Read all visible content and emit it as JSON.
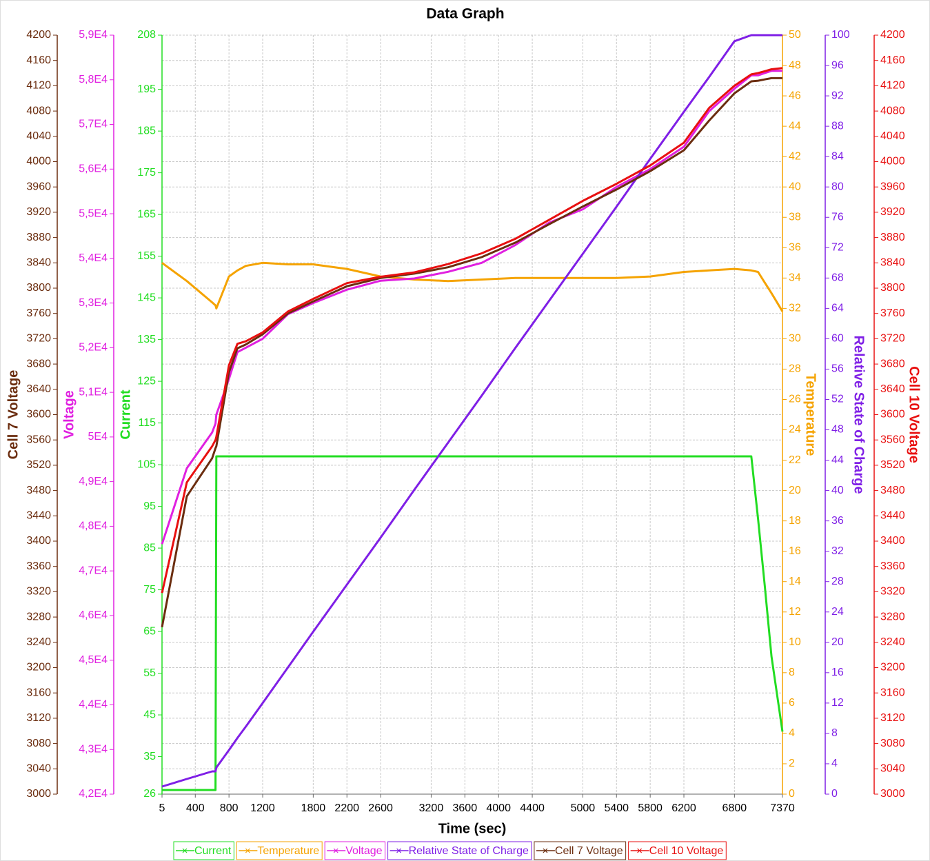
{
  "chart_data": {
    "type": "line",
    "title": "Data Graph",
    "x_label": "Time (sec)",
    "xlim": [
      5,
      7370
    ],
    "xticks": [
      5,
      400,
      800,
      1200,
      1800,
      2200,
      2600,
      3200,
      3600,
      4000,
      4400,
      5000,
      5400,
      5800,
      6200,
      6800,
      7370
    ],
    "grid": true,
    "legend": "bottom",
    "axes": {
      "y": {
        "label": "Cell 7 Voltage",
        "color": "#6b2d0f",
        "side": "left",
        "lim": [
          3000,
          4200
        ],
        "ticks": [
          3000,
          3040,
          3080,
          3120,
          3160,
          3200,
          3240,
          3280,
          3320,
          3360,
          3400,
          3440,
          3480,
          3520,
          3560,
          3600,
          3640,
          3680,
          3720,
          3760,
          3800,
          3840,
          3880,
          3920,
          3960,
          4000,
          4040,
          4080,
          4120,
          4160,
          4200
        ]
      },
      "y2": {
        "label": "Voltage",
        "color": "#e020e0",
        "side": "left",
        "lim": [
          42000,
          59000
        ],
        "ticks": [
          {
            "value": 42000,
            "label": "4,2E4"
          },
          {
            "value": 43000,
            "label": "4,3E4"
          },
          {
            "value": 44000,
            "label": "4,4E4"
          },
          {
            "value": 45000,
            "label": "4,5E4"
          },
          {
            "value": 46000,
            "label": "4,6E4"
          },
          {
            "value": 47000,
            "label": "4,7E4"
          },
          {
            "value": 48000,
            "label": "4,8E4"
          },
          {
            "value": 49000,
            "label": "4,9E4"
          },
          {
            "value": 50000,
            "label": "5E4"
          },
          {
            "value": 51000,
            "label": "5,1E4"
          },
          {
            "value": 52000,
            "label": "5,2E4"
          },
          {
            "value": 53000,
            "label": "5,3E4"
          },
          {
            "value": 54000,
            "label": "5,4E4"
          },
          {
            "value": 55000,
            "label": "5,5E4"
          },
          {
            "value": 56000,
            "label": "5,6E4"
          },
          {
            "value": 57000,
            "label": "5,7E4"
          },
          {
            "value": 58000,
            "label": "5,8E4"
          },
          {
            "value": 59000,
            "label": "5,9E4"
          }
        ]
      },
      "y3": {
        "label": "Current",
        "color": "#22dd22",
        "side": "left",
        "lim": [
          26,
          208
        ],
        "ticks": [
          26,
          35,
          45,
          55,
          65,
          75,
          85,
          95,
          105,
          115,
          125,
          135,
          145,
          155,
          165,
          175,
          185,
          195,
          208
        ]
      },
      "y4": {
        "label": "Temperature",
        "color": "#f5a300",
        "side": "right",
        "lim": [
          0,
          50
        ],
        "ticks": [
          0,
          2,
          4,
          6,
          8,
          10,
          12,
          14,
          16,
          18,
          20,
          22,
          24,
          26,
          28,
          30,
          32,
          34,
          36,
          38,
          40,
          42,
          44,
          46,
          48,
          50
        ]
      },
      "y5": {
        "label": "Relative State of Charge",
        "color": "#7f1fe6",
        "side": "right",
        "lim": [
          0,
          100
        ],
        "ticks": [
          0,
          4,
          8,
          12,
          16,
          20,
          24,
          28,
          32,
          36,
          40,
          44,
          48,
          52,
          56,
          60,
          64,
          68,
          72,
          76,
          80,
          84,
          88,
          92,
          96,
          100
        ]
      },
      "y6": {
        "label": "Cell 10 Voltage",
        "color": "#e81010",
        "side": "right",
        "lim": [
          3000,
          4200
        ],
        "ticks": [
          3000,
          3040,
          3080,
          3120,
          3160,
          3200,
          3240,
          3280,
          3320,
          3360,
          3400,
          3440,
          3480,
          3520,
          3560,
          3600,
          3640,
          3680,
          3720,
          3760,
          3800,
          3840,
          3880,
          3920,
          3960,
          4000,
          4040,
          4080,
          4120,
          4160,
          4200
        ]
      }
    },
    "x": [
      5,
      300,
      600,
      640,
      650,
      800,
      900,
      1000,
      1200,
      1500,
      1800,
      2200,
      2600,
      3000,
      3400,
      3800,
      4200,
      4600,
      5000,
      5400,
      5800,
      6200,
      6500,
      6800,
      7000,
      7080,
      7160,
      7240,
      7370
    ],
    "series": [
      {
        "name": "Current",
        "color": "#22dd22",
        "axis": "y3",
        "values": [
          27,
          27,
          27,
          27,
          107,
          107,
          107,
          107,
          107,
          107,
          107,
          107,
          107,
          107,
          107,
          107,
          107,
          107,
          107,
          107,
          107,
          107,
          107,
          107,
          107,
          92,
          76,
          59,
          41
        ]
      },
      {
        "name": "Temperature",
        "color": "#f5a300",
        "axis": "y4",
        "values": [
          35,
          33.8,
          32.4,
          32.2,
          32,
          34.1,
          34.5,
          34.8,
          35,
          34.9,
          34.9,
          34.6,
          34.1,
          33.9,
          33.8,
          33.9,
          34,
          34,
          34,
          34,
          34.1,
          34.4,
          34.5,
          34.6,
          34.5,
          34.4,
          33.7,
          33,
          31.8
        ]
      },
      {
        "name": "Voltage",
        "color": "#e020e0",
        "axis": "y2",
        "values": [
          47600,
          49300,
          50100,
          50300,
          50500,
          51300,
          51900,
          52000,
          52200,
          52750,
          53000,
          53300,
          53500,
          53550,
          53700,
          53900,
          54300,
          54800,
          55100,
          55600,
          56000,
          56500,
          57300,
          57800,
          58100,
          58100,
          58150,
          58200,
          58200
        ]
      },
      {
        "name": "Relative State of Charge",
        "color": "#7f1fe6",
        "axis": "y5",
        "values": [
          1,
          2,
          3,
          3,
          3.5,
          5.8,
          7.4,
          8.9,
          12,
          16.7,
          21.4,
          27.6,
          33.8,
          40.1,
          46.3,
          52.5,
          58.8,
          65,
          71.2,
          77.4,
          83.7,
          89.9,
          94.5,
          99.2,
          100,
          100,
          100,
          100,
          100
        ]
      },
      {
        "name": "Cell 7 Voltage",
        "color": "#6b2d0f",
        "axis": "y",
        "values": [
          3264,
          3471,
          3531,
          3547,
          3550,
          3667,
          3705,
          3711,
          3727,
          3760,
          3779,
          3803,
          3816,
          3823,
          3833,
          3849,
          3872,
          3901,
          3929,
          3956,
          3985,
          4018,
          4065,
          4108,
          4127,
          4128,
          4130,
          4132,
          4132
        ]
      },
      {
        "name": "Cell 10 Voltage",
        "color": "#e81010",
        "axis": "y6",
        "values": [
          3318,
          3493,
          3550,
          3560,
          3565,
          3678,
          3712,
          3716,
          3730,
          3763,
          3783,
          3808,
          3818,
          3825,
          3838,
          3855,
          3878,
          3908,
          3938,
          3965,
          3994,
          4030,
          4085,
          4120,
          4138,
          4140,
          4143,
          4146,
          4148
        ]
      }
    ]
  }
}
